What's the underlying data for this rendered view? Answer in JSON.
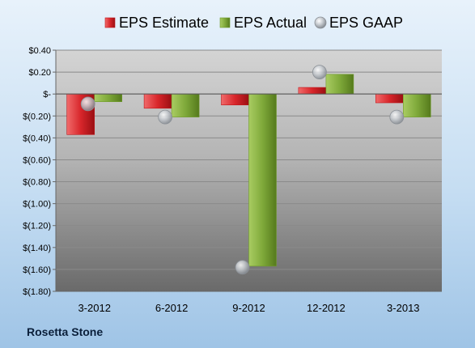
{
  "company": "Rosetta Stone",
  "chart_data": {
    "type": "bar",
    "title": "",
    "xlabel": "",
    "ylabel": "",
    "categories": [
      "3-2012",
      "6-2012",
      "9-2012",
      "12-2012",
      "3-2013"
    ],
    "series": [
      {
        "name": "EPS Estimate",
        "type": "bar",
        "color": "#c0161b",
        "values": [
          -0.37,
          -0.13,
          -0.1,
          0.06,
          -0.08
        ]
      },
      {
        "name": "EPS Actual",
        "type": "bar",
        "color": "#6f9a2b",
        "values": [
          -0.07,
          -0.21,
          -1.57,
          0.18,
          -0.21
        ]
      },
      {
        "name": "EPS GAAP",
        "type": "scatter",
        "color": "#a9aeb4",
        "values": [
          -0.09,
          -0.21,
          -1.58,
          0.2,
          -0.21
        ]
      }
    ],
    "ylim": [
      -1.8,
      0.4
    ],
    "yticks": [
      0.4,
      0.2,
      0,
      -0.2,
      -0.4,
      -0.6,
      -0.8,
      -1.0,
      -1.2,
      -1.4,
      -1.6,
      -1.8
    ],
    "ytick_labels": [
      "$0.40",
      "$0.20",
      "$-",
      "$(0.20)",
      "$(0.40)",
      "$(0.60)",
      "$(0.80)",
      "$(1.00)",
      "$(1.20)",
      "$(1.40)",
      "$(1.60)",
      "$(1.80)"
    ],
    "grid": true,
    "legend_position": "top"
  }
}
